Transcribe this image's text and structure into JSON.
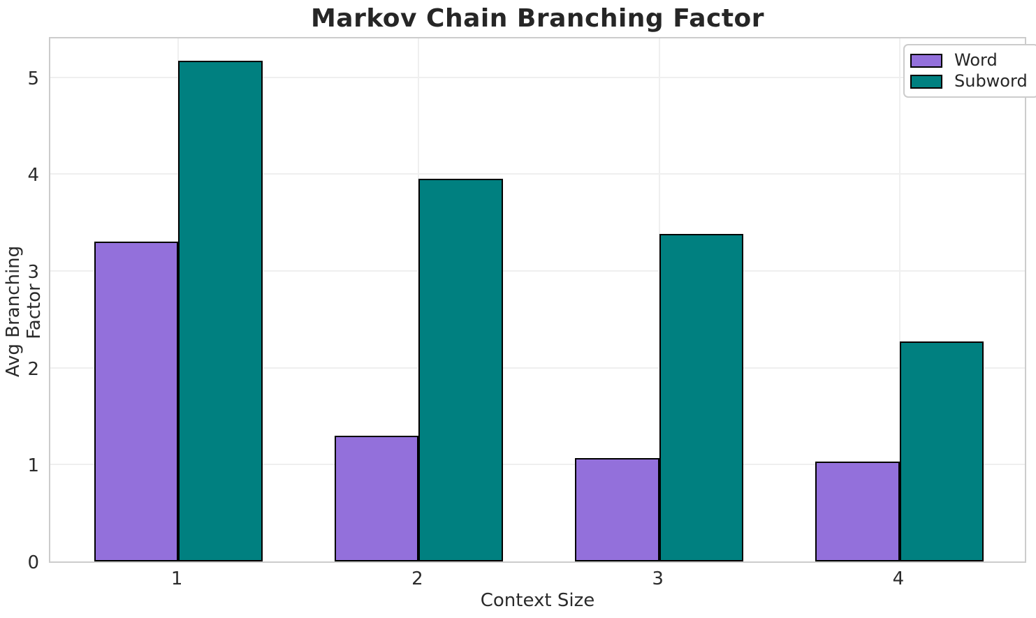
{
  "chart_data": {
    "type": "bar",
    "title": "Markov Chain Branching Factor",
    "xlabel": "Context Size",
    "ylabel": "Avg Branching Factor",
    "categories": [
      "1",
      "2",
      "3",
      "4"
    ],
    "series": [
      {
        "name": "Word",
        "color": "#9370DB",
        "values": [
          3.3,
          1.3,
          1.07,
          1.03
        ]
      },
      {
        "name": "Subword",
        "color": "#008080",
        "values": [
          5.17,
          3.95,
          3.38,
          2.27
        ]
      }
    ],
    "yticks": [
      0,
      1,
      2,
      3,
      4,
      5
    ],
    "ylim": [
      0,
      5.43
    ],
    "bar_width": 0.35,
    "grid": true,
    "legend_position": "upper right",
    "bar_edge_color": "#000000",
    "colors": {
      "text": "#262626",
      "tick_text": "#2b2b2b",
      "gridline": "#efefef",
      "spine": "#cccccc",
      "background": "#ffffff"
    }
  }
}
